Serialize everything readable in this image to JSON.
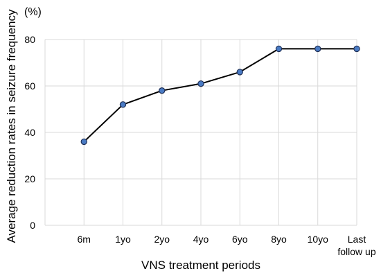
{
  "chart_data": {
    "type": "line",
    "title": "",
    "xlabel": "VNS treatment periods",
    "ylabel": "Average reduction rates in seizure frequency",
    "y_unit": "(%)",
    "ylim": [
      0,
      80
    ],
    "yticks": [
      "0",
      "20",
      "40",
      "60",
      "80"
    ],
    "categories": [
      [
        "6m"
      ],
      [
        "1yo"
      ],
      [
        "2yo"
      ],
      [
        "4yo"
      ],
      [
        "6yo"
      ],
      [
        "8yo"
      ],
      [
        "10yo"
      ],
      [
        "Last",
        "follow up"
      ]
    ],
    "series": [
      {
        "values": [
          36,
          52,
          58,
          61,
          66,
          76,
          76,
          76
        ]
      }
    ],
    "grid": "vertical-and-horizontal",
    "colors": {
      "line": "#000000",
      "marker": "#4a7bc4",
      "marker_edge": "#1f2f55",
      "grid": "#d9d9d9"
    }
  }
}
